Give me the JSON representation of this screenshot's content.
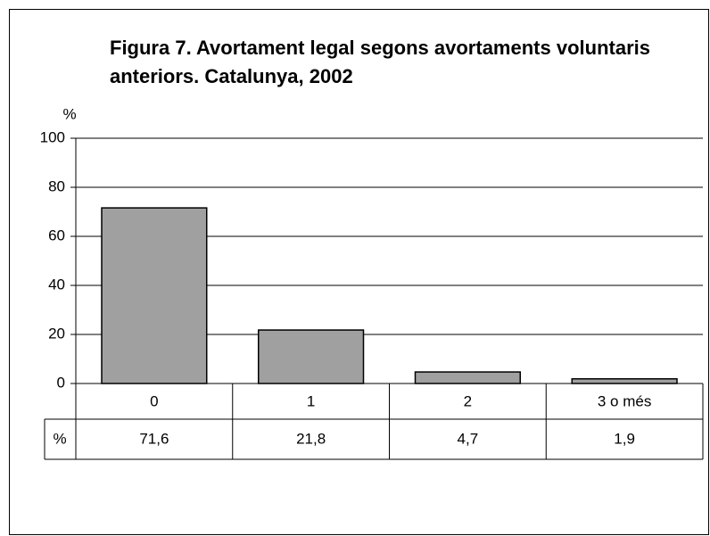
{
  "chart_data": {
    "type": "bar",
    "title": "Figura 7. Avortament legal segons avortaments voluntaris anteriors. Catalunya, 2002",
    "y_label": "%",
    "categories": [
      "0",
      "1",
      "2",
      "3 o més"
    ],
    "values": [
      71.6,
      21.8,
      4.7,
      1.9
    ],
    "value_labels": [
      "71,6",
      "21,8",
      "4,7",
      "1,9"
    ],
    "table_row_label": "%",
    "color": "#a0a0a0",
    "ylim": [
      0,
      100
    ],
    "yticks": [
      0,
      20,
      40,
      60,
      80,
      100
    ],
    "grid": true
  }
}
